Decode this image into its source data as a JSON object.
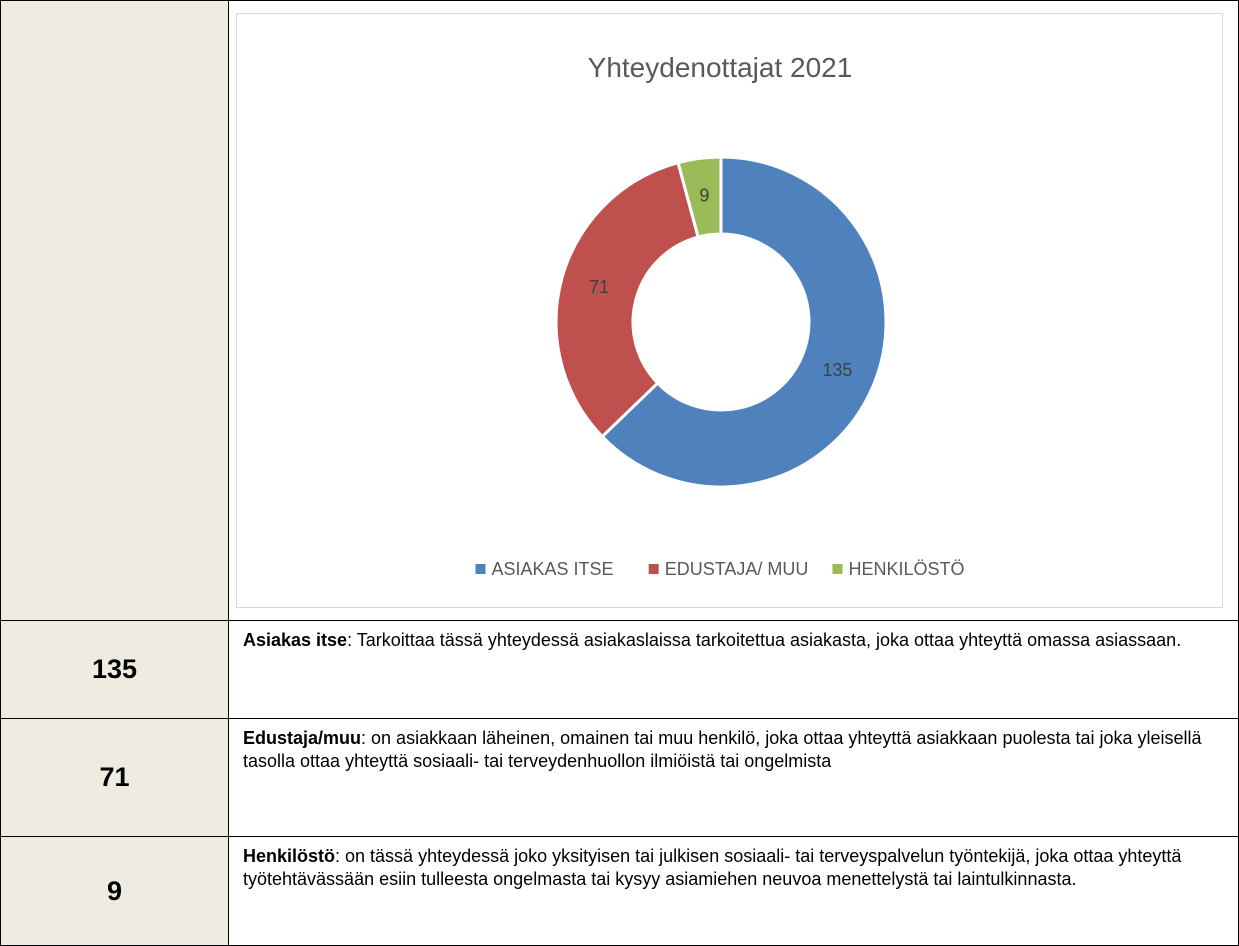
{
  "chart_data": {
    "type": "pie",
    "donut": true,
    "title": "Yhteydenottajat 2021",
    "categories": [
      "ASIAKAS ITSE",
      "EDUSTAJA/ MUU",
      "HENKILÖSTÖ"
    ],
    "values": [
      135,
      71,
      9
    ],
    "colors": [
      "#4f81bd",
      "#c0504d",
      "#9bbb59"
    ]
  },
  "table": {
    "rows": [
      {
        "value": 135,
        "term": "Asiakas itse",
        "text": ": Tarkoittaa tässä yhteydessä asiakaslaissa tarkoitettua asiakasta, joka ottaa yhteyttä omassa asiassaan."
      },
      {
        "value": 71,
        "term": "Edustaja/muu",
        "text": ": on asiakkaan läheinen, omainen tai muu henkilö, joka ottaa yhteyttä asiakkaan puolesta tai joka yleisellä tasolla ottaa yhteyttä sosiaali- tai terveydenhuollon ilmiöistä tai ongelmista"
      },
      {
        "value": 9,
        "term": "Henkilöstö",
        "text": ": on tässä yhteydessä joko yksityisen tai julkisen sosiaali- tai terveyspalvelun työntekijä, joka ottaa yhteyttä työtehtävässään esiin tulleesta ongelmasta tai kysyy asiamiehen neuvoa menettelystä tai laintulkinnasta."
      }
    ]
  }
}
